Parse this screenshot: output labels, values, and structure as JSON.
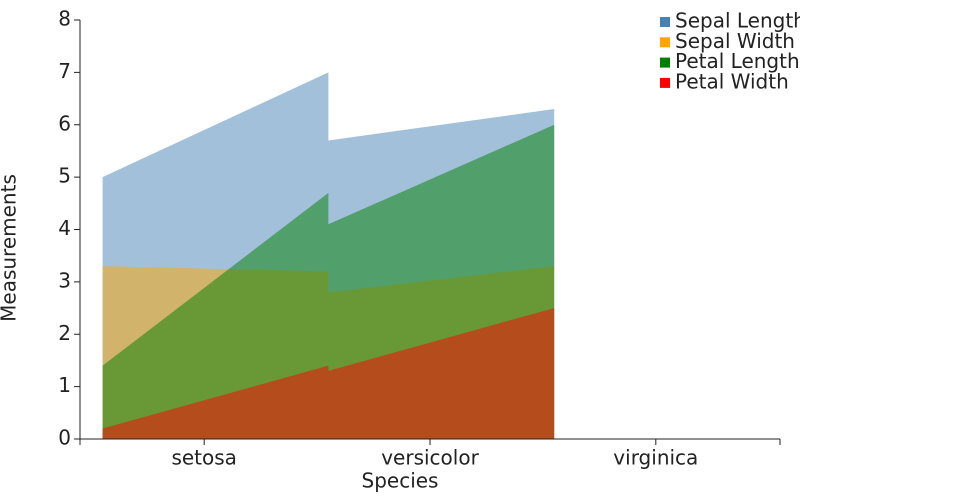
{
  "chart_data": {
    "type": "area",
    "xlabel": "Species",
    "ylabel": "Measurements",
    "categories": [
      "setosa",
      "versicolor",
      "virginica"
    ],
    "x": [
      "setosa",
      "versicolor",
      "versicolor",
      "virginica"
    ],
    "series": [
      {
        "name": "Sepal Length",
        "color": "#4682b4",
        "values": [
          5.0,
          7.0,
          5.7,
          6.3
        ]
      },
      {
        "name": "Sepal Width",
        "color": "#ffa500",
        "values": [
          3.3,
          3.2,
          2.8,
          3.3
        ]
      },
      {
        "name": "Petal Length",
        "color": "#008000",
        "values": [
          1.4,
          4.7,
          4.1,
          6.0
        ]
      },
      {
        "name": "Petal Width",
        "color": "#ff0000",
        "values": [
          0.2,
          1.4,
          1.3,
          2.5
        ]
      }
    ],
    "ylim": [
      0,
      8
    ],
    "yticks": [
      0,
      1,
      2,
      3,
      4,
      5,
      6,
      7,
      8
    ],
    "legend": "top-right"
  }
}
